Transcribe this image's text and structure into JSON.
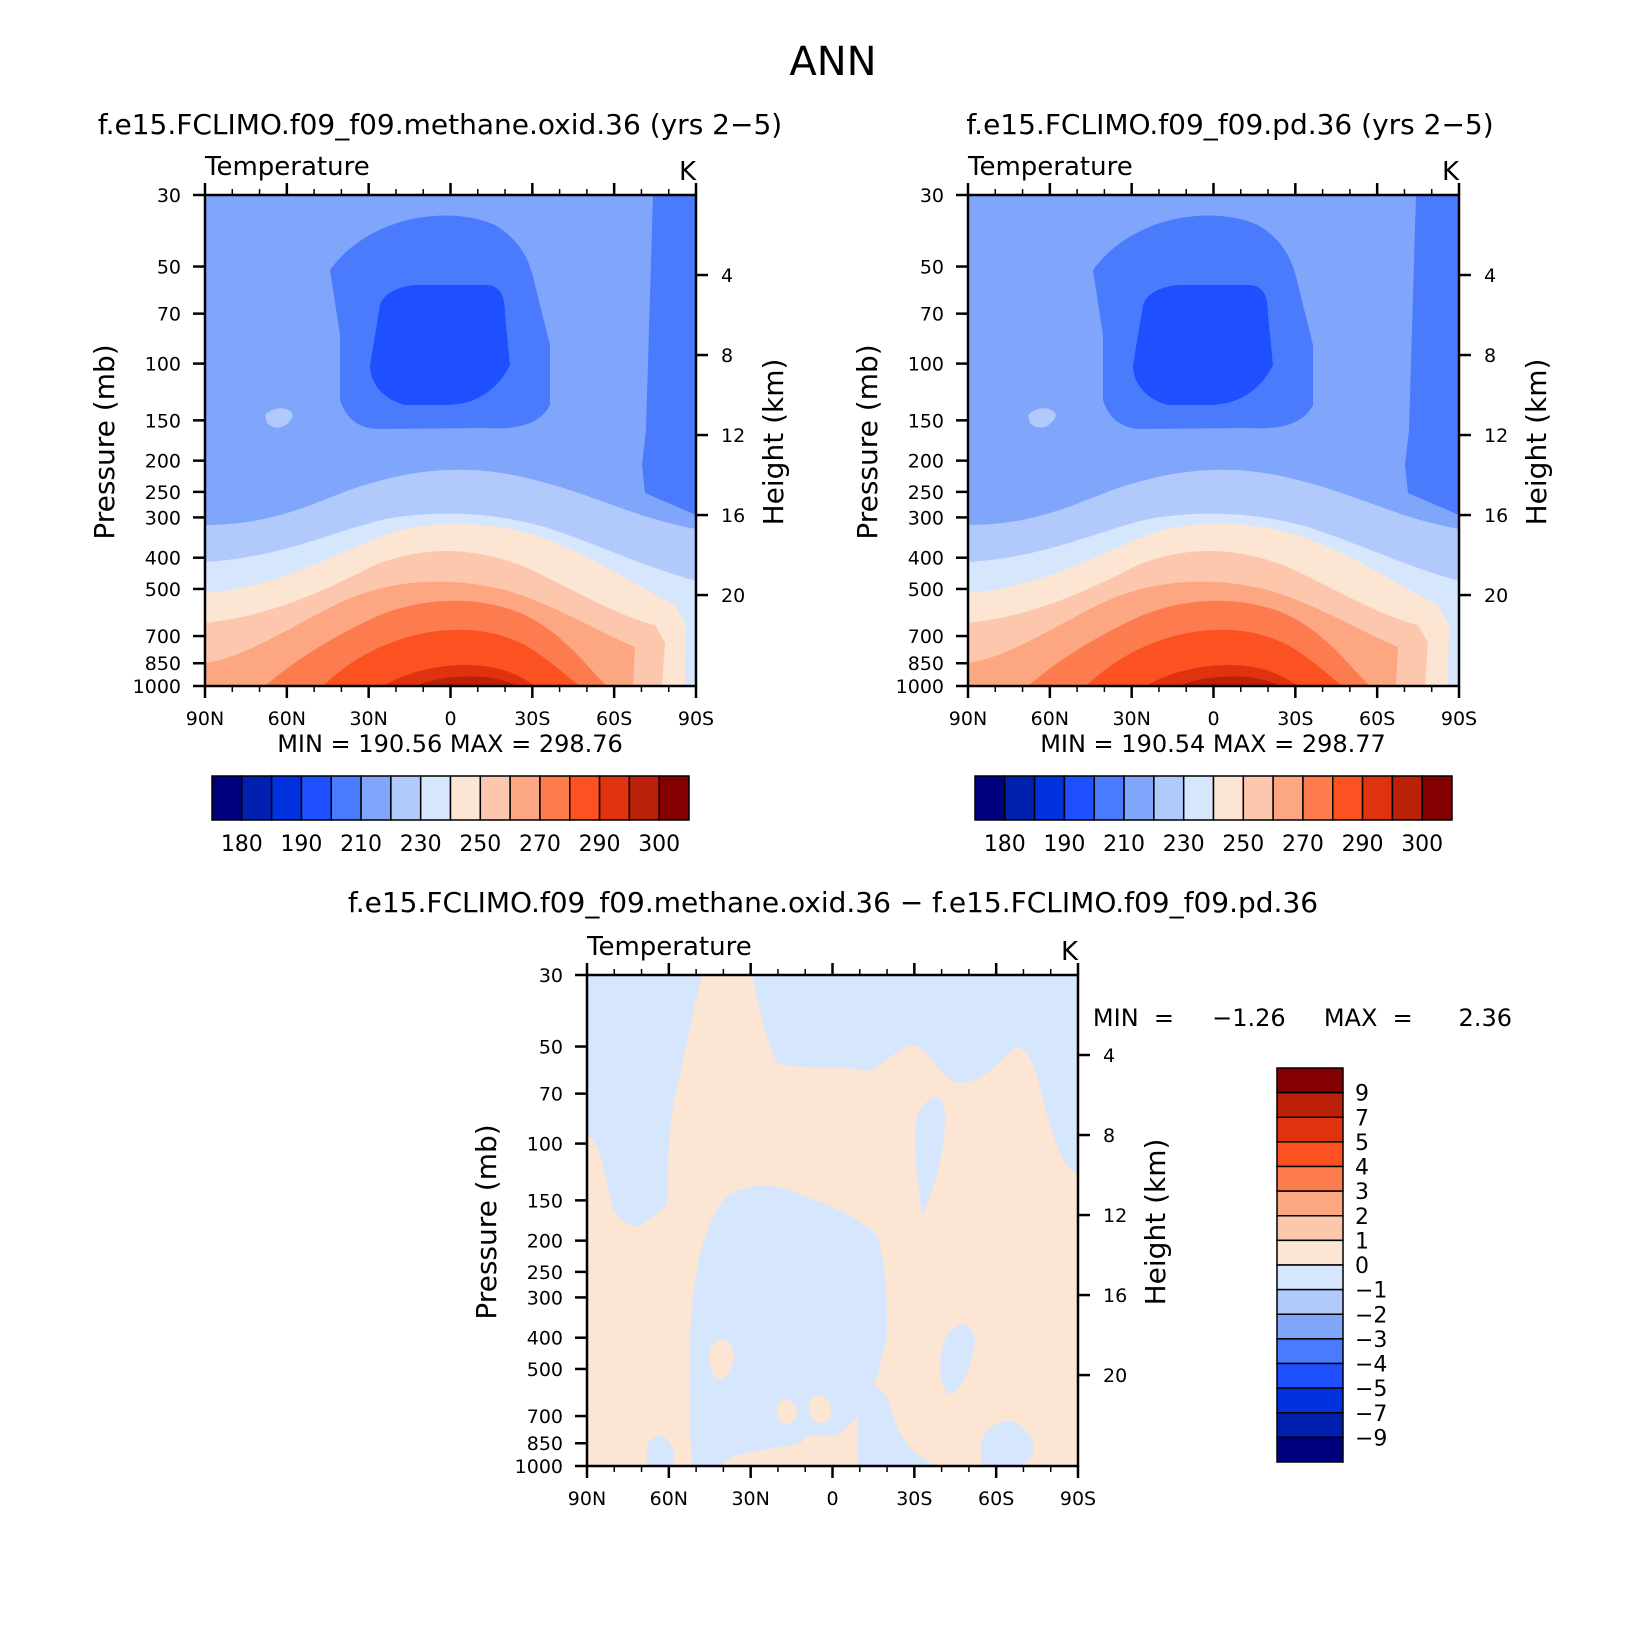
{
  "figure": {
    "title": "ANN",
    "diff_title": "f.e15.FCLIMO.f09_f09.methane.oxid.36  −  f.e15.FCLIMO.f09_f09.pd.36"
  },
  "axes_common": {
    "x_ticks": [
      "90N",
      "60N",
      "30N",
      "0",
      "30S",
      "60S",
      "90S"
    ],
    "p_ticks": [
      "30",
      "50",
      "70",
      "100",
      "150",
      "200",
      "250",
      "300",
      "400",
      "500",
      "700",
      "850",
      "1000"
    ],
    "h_ticks": [
      "20",
      "16",
      "12",
      "8",
      "4"
    ],
    "ylabel": "Pressure  (mb)",
    "ylabel2": "Height  (km)"
  },
  "panels": [
    {
      "case_title": "f.e15.FCLIMO.f09_f09.methane.oxid.36  (yrs  2−5)",
      "var": "Temperature",
      "units": "K",
      "stats": "MIN  =  190.56    MAX  =  298.76",
      "cb_labels": [
        "180",
        "190",
        "210",
        "230",
        "250",
        "270",
        "290",
        "300"
      ]
    },
    {
      "case_title": "f.e15.FCLIMO.f09_f09.pd.36  (yrs  2−5)",
      "var": "Temperature",
      "units": "K",
      "stats": "MIN  =  190.54    MAX  =  298.77",
      "cb_labels": [
        "180",
        "190",
        "210",
        "230",
        "250",
        "270",
        "290",
        "300"
      ]
    },
    {
      "var": "Temperature",
      "units": "K",
      "stats": "MIN  =     −1.26     MAX  =      2.36",
      "cb_labels": [
        "9",
        "7",
        "5",
        "4",
        "3",
        "2",
        "1",
        "0",
        "−1",
        "−2",
        "−3",
        "−4",
        "−5",
        "−7",
        "−9"
      ]
    }
  ],
  "chart_data": [
    {
      "type": "heatmap",
      "title": "f.e15.FCLIMO.f09_f09.methane.oxid.36 (yrs 2-5) Temperature",
      "xlabel": "",
      "ylabel": "Pressure (mb)",
      "ylabel_right": "Height (km)",
      "units": "K",
      "x_range": [
        "90N",
        "90S"
      ],
      "y_range": [
        1000,
        30
      ],
      "contour_levels": [
        180,
        185,
        190,
        200,
        210,
        220,
        230,
        240,
        250,
        260,
        270,
        280,
        290,
        295,
        300
      ],
      "min": 190.56,
      "max": 298.76
    },
    {
      "type": "heatmap",
      "title": "f.e15.FCLIMO.f09_f09.pd.36 (yrs 2-5) Temperature",
      "xlabel": "",
      "ylabel": "Pressure (mb)",
      "ylabel_right": "Height (km)",
      "units": "K",
      "x_range": [
        "90N",
        "90S"
      ],
      "y_range": [
        1000,
        30
      ],
      "contour_levels": [
        180,
        185,
        190,
        200,
        210,
        220,
        230,
        240,
        250,
        260,
        270,
        280,
        290,
        295,
        300
      ],
      "min": 190.54,
      "max": 298.77
    },
    {
      "type": "heatmap",
      "title": "f.e15.FCLIMO.f09_f09.methane.oxid.36 - f.e15.FCLIMO.f09_f09.pd.36 Temperature",
      "xlabel": "",
      "ylabel": "Pressure (mb)",
      "ylabel_right": "Height (km)",
      "units": "K",
      "x_range": [
        "90N",
        "90S"
      ],
      "y_range": [
        1000,
        30
      ],
      "contour_levels": [
        -9,
        -7,
        -5,
        -4,
        -3,
        -2,
        -1,
        0,
        1,
        2,
        3,
        4,
        5,
        7,
        9
      ],
      "min": -1.26,
      "max": 2.36
    }
  ],
  "colors": {
    "abs_scale": [
      "#00007f",
      "#0020b0",
      "#0032e0",
      "#1e50ff",
      "#4a7bfc",
      "#7fa6fb",
      "#b2c9fc",
      "#d6e6fc",
      "#fde5d4",
      "#fcc7ad",
      "#fca782",
      "#fc7c50",
      "#fc5222",
      "#e13210",
      "#bb2108",
      "#850000"
    ],
    "diff_scale": [
      "#00007f",
      "#0020b0",
      "#0032e0",
      "#1e50ff",
      "#4a7bfc",
      "#7fa6fb",
      "#b2c9fc",
      "#d6e6fc",
      "#fde5d4",
      "#fcc7ad",
      "#fca782",
      "#fc7c50",
      "#fc5222",
      "#e13210",
      "#bb2108",
      "#850000"
    ]
  }
}
